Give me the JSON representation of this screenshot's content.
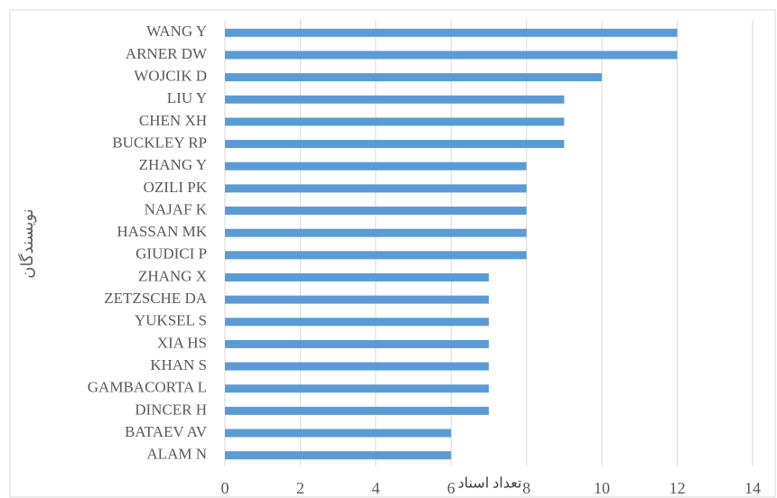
{
  "chart_data": {
    "type": "bar",
    "orientation": "horizontal",
    "xlabel": "تعداد اسناد",
    "ylabel": "نویسندگان",
    "categories": [
      "WANG Y",
      "ARNER DW",
      "WOJCIK D",
      "LIU Y",
      "CHEN XH",
      "BUCKLEY RP",
      "ZHANG Y",
      "OZILI PK",
      "NAJAF K",
      "HASSAN MK",
      "GIUDICI P",
      "ZHANG X",
      "ZETZSCHE DA",
      "YUKSEL S",
      "XIA HS",
      "KHAN S",
      "GAMBACORTA L",
      "DINCER H",
      "BATAEV AV",
      "ALAM N"
    ],
    "values": [
      12,
      12,
      10,
      9,
      9,
      9,
      8,
      8,
      8,
      8,
      8,
      7,
      7,
      7,
      7,
      7,
      7,
      7,
      6,
      6
    ],
    "color": "#5b9bd5",
    "xlim": [
      0,
      14
    ],
    "xticks": [
      0,
      2,
      4,
      6,
      8,
      10,
      12,
      14
    ],
    "grid": true
  }
}
